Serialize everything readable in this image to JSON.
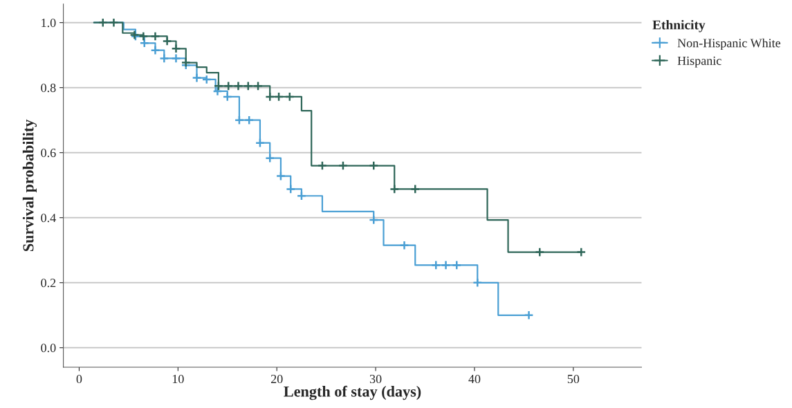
{
  "chart_data": {
    "type": "step",
    "xlabel": "Length of stay (days)",
    "ylabel": "Survival probability",
    "legend_title": "Ethnicity",
    "xlim": [
      -1.6,
      56.9
    ],
    "xticks": [
      0,
      10,
      20,
      30,
      40,
      50
    ],
    "ylim": [
      -0.06,
      1.057
    ],
    "yticks": [
      {
        "value": 0,
        "label": "0.0"
      },
      {
        "value": 0.2,
        "label": "0.2"
      },
      {
        "value": 0.4,
        "label": "0.4"
      },
      {
        "value": 0.6,
        "label": "0.6"
      },
      {
        "value": 0.8,
        "label": "0.8"
      },
      {
        "value": 1,
        "label": "1.0"
      }
    ],
    "grid": "y",
    "legend": "right",
    "series": [
      {
        "name": "Non-Hispanic White",
        "color": "#4a9fd4",
        "x": [
          1.5,
          4.5,
          5.7,
          6.6,
          7.7,
          8.6,
          10.8,
          11.9,
          12.9,
          13.8,
          15.0,
          16.2,
          18.3,
          19.3,
          20.4,
          21.4,
          22.5,
          24.6,
          29.8,
          30.8,
          34.0,
          40.3,
          42.4,
          45.5
        ],
        "values": [
          1.0,
          0.979,
          0.958,
          0.937,
          0.915,
          0.89,
          0.869,
          0.83,
          0.825,
          0.789,
          0.772,
          0.7,
          0.63,
          0.583,
          0.528,
          0.488,
          0.467,
          0.419,
          0.393,
          0.315,
          0.254,
          0.2,
          0.1,
          0.1
        ]
      },
      {
        "name": "Hispanic",
        "color": "#2e6658",
        "x": [
          1.5,
          4.4,
          5.6,
          6.5,
          8.9,
          9.8,
          10.8,
          11.9,
          12.9,
          14.1,
          19.3,
          22.5,
          23.5,
          31.9,
          41.3,
          43.4,
          50.8
        ],
        "values": [
          1.0,
          0.968,
          0.962,
          0.958,
          0.943,
          0.92,
          0.877,
          0.863,
          0.846,
          0.805,
          0.772,
          0.729,
          0.56,
          0.488,
          0.393,
          0.294,
          0.294
        ]
      },
      {
        "type": "scatter",
        "marker": "cross",
        "color": "#4a9fd4",
        "x": [
          5.7,
          6.6,
          7.7,
          8.6,
          9.8,
          10.8,
          11.9,
          12.9,
          14.0,
          15.0,
          16.2,
          17.2,
          18.3,
          19.3,
          20.4,
          21.4,
          22.5,
          29.8,
          32.9,
          36.1,
          37.1,
          38.2,
          40.3,
          45.5
        ],
        "values": [
          0.958,
          0.937,
          0.915,
          0.89,
          0.89,
          0.869,
          0.83,
          0.825,
          0.789,
          0.772,
          0.7,
          0.7,
          0.63,
          0.583,
          0.528,
          0.488,
          0.467,
          0.393,
          0.315,
          0.254,
          0.254,
          0.254,
          0.2,
          0.1
        ]
      },
      {
        "type": "scatter",
        "marker": "cross",
        "color": "#2e6658",
        "x": [
          2.4,
          3.5,
          5.6,
          6.5,
          7.7,
          8.9,
          9.8,
          10.8,
          14.1,
          15.1,
          16.1,
          17.1,
          18.1,
          19.3,
          20.2,
          21.3,
          24.6,
          26.7,
          29.8,
          31.9,
          34.0,
          46.6,
          50.8
        ],
        "values": [
          1.0,
          1.0,
          0.962,
          0.958,
          0.958,
          0.943,
          0.92,
          0.877,
          0.805,
          0.805,
          0.805,
          0.805,
          0.805,
          0.772,
          0.772,
          0.772,
          0.56,
          0.56,
          0.56,
          0.488,
          0.488,
          0.294,
          0.294
        ]
      }
    ]
  }
}
